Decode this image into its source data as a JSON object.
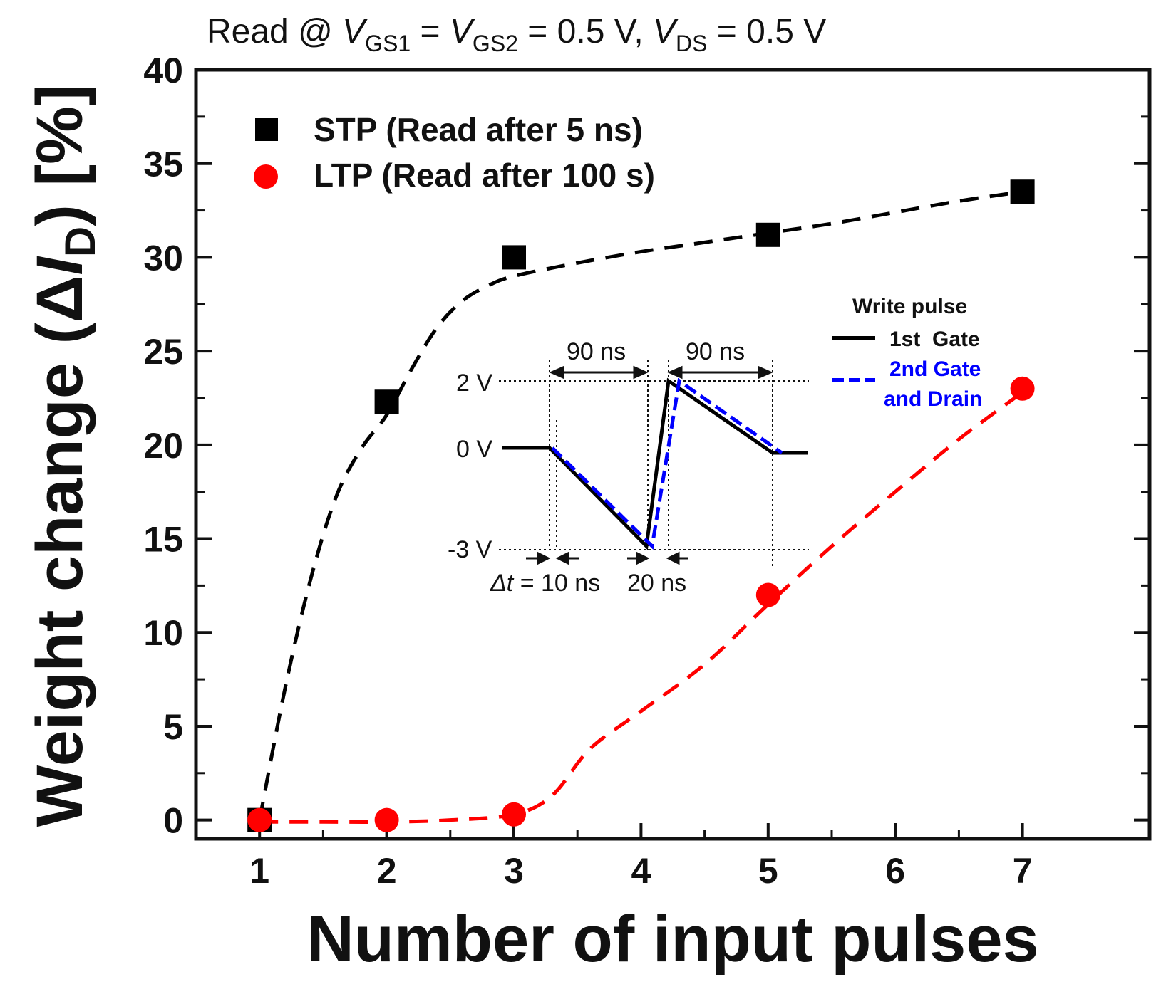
{
  "chart_data": {
    "type": "scatter",
    "title": "Read @ VGS1 = VGS2 = 0.5 V, VDS = 0.5 V",
    "title_parts": {
      "prefix": "Read @ ",
      "v": "V",
      "gs1": "GS1",
      "eq1": " = ",
      "gs2": "GS2",
      "mid": " = 0.5 V, ",
      "ds": "DS",
      "suffix": " = 0.5 V"
    },
    "xlabel": "Number of input pulses",
    "ylabel": "Weight change (ΔID) [%]",
    "ylabel_parts": {
      "prefix": "Weight change (",
      "delta": "Δ",
      "i": "I",
      "sub": "D",
      "suffix": ") [%]"
    },
    "xlim": [
      0.5,
      8.0
    ],
    "ylim": [
      -1,
      40
    ],
    "xticks": [
      1,
      2,
      3,
      4,
      5,
      6,
      7
    ],
    "yticks": [
      0,
      5,
      10,
      15,
      20,
      25,
      30,
      35,
      40
    ],
    "legend_position": "top-left",
    "series": [
      {
        "name": "STP (Read after 5 ns)",
        "marker": "square",
        "color": "#000000",
        "x": [
          1,
          2,
          3,
          5,
          7
        ],
        "y": [
          0,
          22.3,
          30.0,
          31.2,
          33.5
        ],
        "fit_x": [
          1.0,
          1.2,
          1.4,
          1.6,
          1.8,
          2.0,
          2.2,
          2.4,
          2.6,
          2.8,
          3.0,
          3.5,
          4.0,
          4.5,
          5.0,
          5.5,
          6.0,
          6.5,
          7.0
        ],
        "fit_y": [
          0.0,
          7.0,
          12.8,
          17.2,
          19.8,
          21.6,
          24.1,
          26.3,
          27.7,
          28.5,
          29.0,
          29.7,
          30.3,
          30.8,
          31.3,
          31.8,
          32.4,
          33.0,
          33.5
        ]
      },
      {
        "name": "LTP (Read after 100 s)",
        "marker": "circle",
        "color": "#ff0000",
        "x": [
          1,
          2,
          3,
          5,
          7
        ],
        "y": [
          0,
          0,
          0.3,
          12.0,
          23.0
        ],
        "fit_x": [
          1.0,
          1.5,
          2.0,
          2.5,
          3.0,
          3.3,
          3.6,
          4.0,
          4.5,
          5.0,
          5.5,
          6.0,
          6.5,
          7.0
        ],
        "fit_y": [
          -0.1,
          -0.1,
          -0.1,
          0.0,
          0.3,
          1.3,
          3.8,
          5.8,
          8.3,
          11.5,
          14.6,
          17.5,
          20.3,
          22.8
        ]
      }
    ]
  },
  "inset": {
    "legend_title": "Write pulse",
    "legend_items": [
      {
        "label": "1st  Gate",
        "color": "#000000"
      },
      {
        "label": "2nd Gate",
        "label2": "and Drain",
        "color": "#0000ff"
      }
    ],
    "voltage_labels": [
      "2 V",
      "0 V",
      "-3 V"
    ],
    "width_labels": [
      "90 ns",
      "90 ns"
    ],
    "delta_t_label": {
      "italic": "Δt",
      "rest": " = 10 ns"
    },
    "rise_label": "20 ns"
  }
}
